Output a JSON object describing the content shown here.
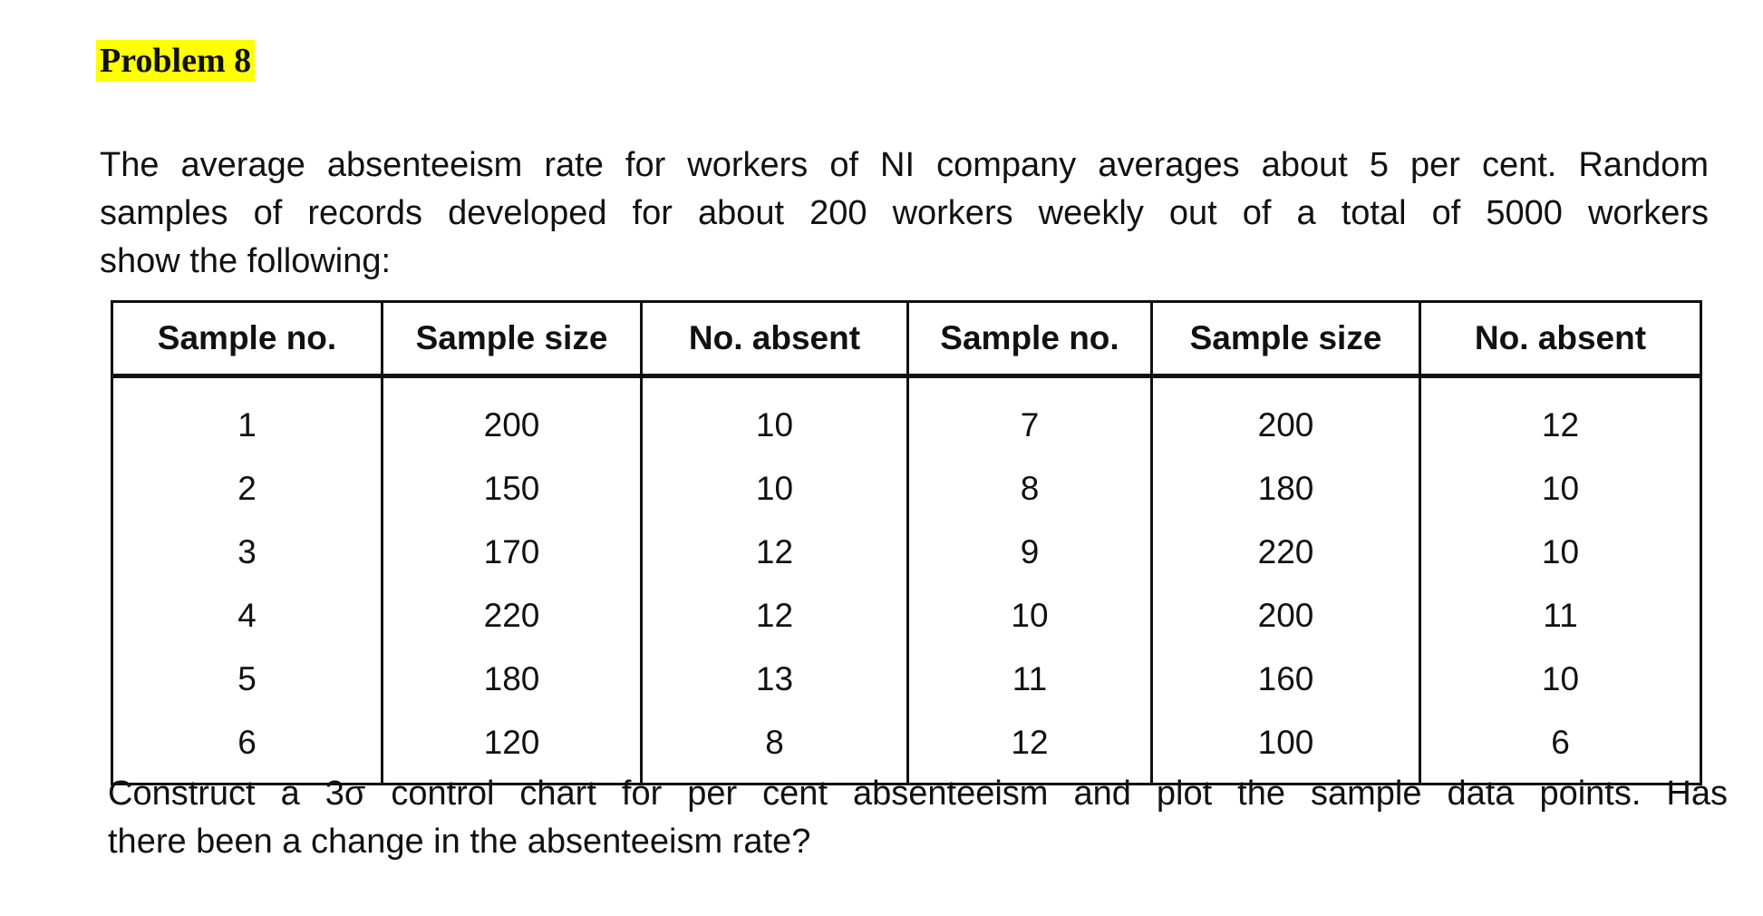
{
  "header": {
    "title": "Problem 8"
  },
  "intro": {
    "lines": [
      "The average absenteeism rate for workers of NI company averages about 5 per cent. Random",
      "samples of records developed for about 200 workers weekly out of a total of 5000 workers",
      "show the following:"
    ]
  },
  "table": {
    "columns": [
      "Sample no.",
      "Sample size",
      "No. absent",
      "Sample no.",
      "Sample size",
      "No. absent"
    ],
    "rows": [
      [
        "1",
        "200",
        "10",
        "7",
        "200",
        "12"
      ],
      [
        "2",
        "150",
        "10",
        "8",
        "180",
        "10"
      ],
      [
        "3",
        "170",
        "12",
        "9",
        "220",
        "10"
      ],
      [
        "4",
        "220",
        "12",
        "10",
        "200",
        "11"
      ],
      [
        "5",
        "180",
        "13",
        "11",
        "160",
        "10"
      ],
      [
        "6",
        "120",
        "8",
        "12",
        "100",
        "6"
      ]
    ]
  },
  "question": {
    "lines": [
      "Construct a 3σ control chart for per cent absenteeism and plot the sample data points. Has",
      "there been a change in the absenteeism rate?"
    ]
  }
}
